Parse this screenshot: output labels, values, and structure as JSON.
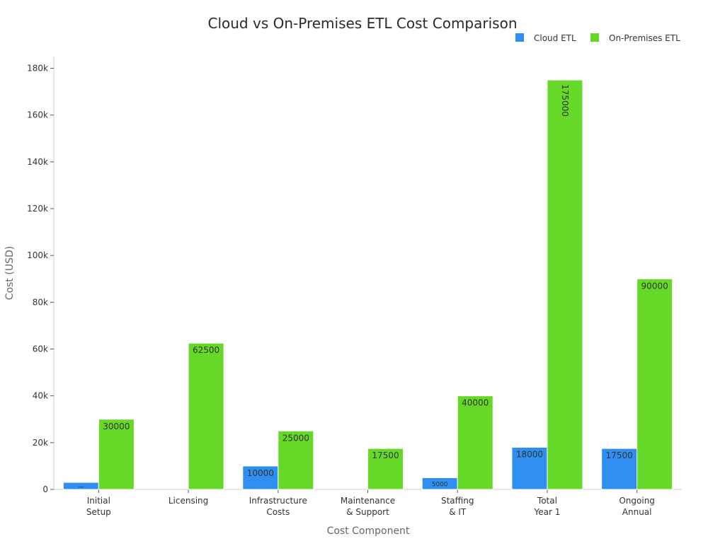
{
  "chart_data": {
    "type": "bar",
    "title": "Cloud vs On-Premises ETL Cost Comparison",
    "xlabel": "Cost Component",
    "ylabel": "Cost (USD)",
    "categories": [
      [
        "Initial",
        "Setup"
      ],
      [
        "Licensing"
      ],
      [
        "Infrastructure",
        "Costs"
      ],
      [
        "Maintenance",
        "& Support"
      ],
      [
        "Staffing",
        "& IT"
      ],
      [
        "Total",
        "Year 1"
      ],
      [
        "Ongoing",
        "Annual"
      ]
    ],
    "series": [
      {
        "name": "Cloud ETL",
        "color": "#2f8ff0",
        "values": [
          3000,
          0,
          10000,
          0,
          5000,
          18000,
          17500
        ],
        "labels": [
          "—",
          "",
          "10000",
          "",
          "5000",
          "18000",
          "17500"
        ]
      },
      {
        "name": "On-Premises ETL",
        "color": "#66d928",
        "values": [
          30000,
          62500,
          25000,
          17500,
          40000,
          175000,
          90000
        ],
        "labels": [
          "30000",
          "62500",
          "25000",
          "17500",
          "40000",
          "175000",
          "90000"
        ]
      }
    ],
    "ylim": [
      0,
      185000
    ],
    "yticks": [
      {
        "value": 0,
        "label": "0"
      },
      {
        "value": 20000,
        "label": "20k"
      },
      {
        "value": 40000,
        "label": "40k"
      },
      {
        "value": 60000,
        "label": "60k"
      },
      {
        "value": 80000,
        "label": "80k"
      },
      {
        "value": 100000,
        "label": "100k"
      },
      {
        "value": 120000,
        "label": "120k"
      },
      {
        "value": 140000,
        "label": "140k"
      },
      {
        "value": 160000,
        "label": "160k"
      },
      {
        "value": 180000,
        "label": "180k"
      }
    ],
    "grid": false,
    "legend_position": "top-right"
  }
}
